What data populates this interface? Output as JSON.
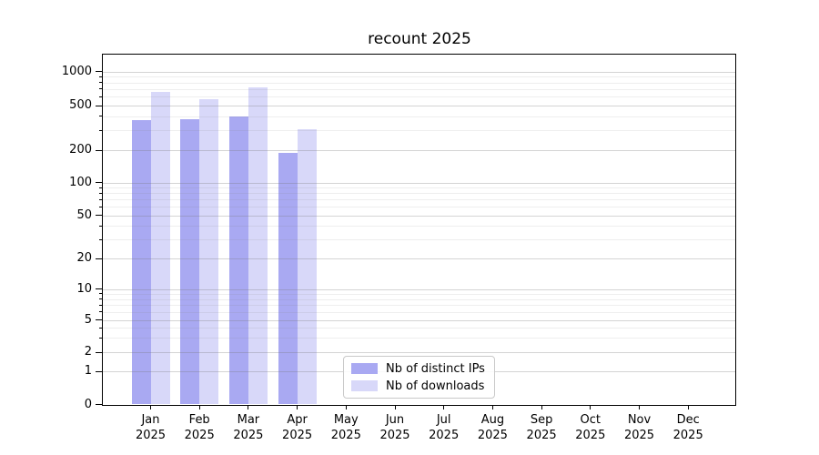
{
  "title": "recount 2025",
  "legend": {
    "items": [
      {
        "label": "Nb of distinct IPs",
        "color": "#a9a9f2"
      },
      {
        "label": "Nb of downloads",
        "color": "#d8d8f9"
      }
    ]
  },
  "chart_data": {
    "type": "bar",
    "title": "recount 2025",
    "categories": [
      "Jan 2025",
      "Feb 2025",
      "Mar 2025",
      "Apr 2025",
      "May 2025",
      "Jun 2025",
      "Jul 2025",
      "Aug 2025",
      "Sep 2025",
      "Oct 2025",
      "Nov 2025",
      "Dec 2025"
    ],
    "series": [
      {
        "name": "Nb of distinct IPs",
        "color": "#a9a9f2",
        "values": [
          370,
          380,
          400,
          190,
          null,
          null,
          null,
          null,
          null,
          null,
          null,
          null
        ]
      },
      {
        "name": "Nb of downloads",
        "color": "#d8d8f9",
        "values": [
          665,
          570,
          730,
          310,
          null,
          null,
          null,
          null,
          null,
          null,
          null,
          null
        ]
      }
    ],
    "yscale": "symlog",
    "ylim": [
      0,
      1400
    ],
    "y_ticks": [
      0,
      1,
      2,
      5,
      10,
      20,
      50,
      100,
      200,
      500,
      1000
    ],
    "y_minor_ticks": [
      3,
      4,
      6,
      7,
      8,
      9,
      30,
      40,
      60,
      70,
      80,
      90,
      300,
      400,
      600,
      700,
      800,
      900
    ],
    "grid": "both",
    "legend_position": "lower-center"
  }
}
